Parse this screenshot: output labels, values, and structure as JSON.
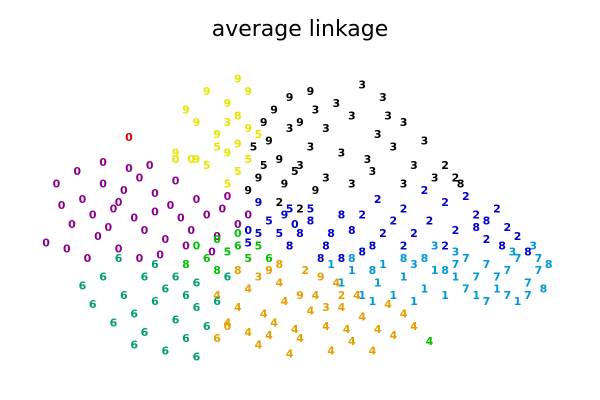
{
  "chart_data": {
    "type": "scatter",
    "title": "average linkage",
    "xlabel": "",
    "ylabel": "",
    "xlim": [
      -0.05,
      1.05
    ],
    "ylim": [
      -0.05,
      1.05
    ],
    "axes_visible": false,
    "grid": false,
    "marker": "digit-text",
    "series": [
      {
        "color": "#0072B2-like-purple",
        "label_color": "#8B008B",
        "digit": "0",
        "points": [
          [
            0.08,
            0.55
          ],
          [
            0.12,
            0.6
          ],
          [
            0.16,
            0.58
          ],
          [
            0.19,
            0.62
          ],
          [
            0.14,
            0.52
          ],
          [
            0.1,
            0.5
          ],
          [
            0.22,
            0.57
          ],
          [
            0.25,
            0.53
          ],
          [
            0.18,
            0.49
          ],
          [
            0.13,
            0.46
          ],
          [
            0.2,
            0.45
          ],
          [
            0.27,
            0.49
          ],
          [
            0.3,
            0.55
          ],
          [
            0.32,
            0.5
          ],
          [
            0.35,
            0.52
          ],
          [
            0.06,
            0.47
          ],
          [
            0.04,
            0.53
          ],
          [
            0.11,
            0.43
          ],
          [
            0.24,
            0.42
          ],
          [
            0.28,
            0.4
          ],
          [
            0.09,
            0.36
          ],
          [
            0.15,
            0.39
          ],
          [
            0.19,
            0.36
          ],
          [
            0.23,
            0.37
          ],
          [
            0.34,
            0.43
          ],
          [
            0.38,
            0.47
          ],
          [
            0.4,
            0.5
          ],
          [
            0.17,
            0.65
          ],
          [
            0.12,
            0.67
          ],
          [
            0.07,
            0.64
          ],
          [
            0.03,
            0.6
          ],
          [
            0.21,
            0.66
          ],
          [
            0.26,
            0.61
          ],
          [
            0.29,
            0.45
          ],
          [
            0.33,
            0.38
          ],
          [
            0.01,
            0.41
          ],
          [
            0.05,
            0.39
          ],
          [
            0.36,
            0.56
          ],
          [
            0.15,
            0.54
          ],
          [
            0.22,
            0.51
          ]
        ]
      },
      {
        "label_color": "#E69F00",
        "digit": "4",
        "points": [
          [
            0.4,
            0.12
          ],
          [
            0.45,
            0.15
          ],
          [
            0.5,
            0.1
          ],
          [
            0.55,
            0.14
          ],
          [
            0.6,
            0.09
          ],
          [
            0.65,
            0.13
          ],
          [
            0.52,
            0.19
          ],
          [
            0.47,
            0.22
          ],
          [
            0.43,
            0.18
          ],
          [
            0.58,
            0.2
          ],
          [
            0.62,
            0.17
          ],
          [
            0.68,
            0.11
          ],
          [
            0.38,
            0.2
          ],
          [
            0.42,
            0.08
          ],
          [
            0.48,
            0.05
          ],
          [
            0.56,
            0.06
          ],
          [
            0.64,
            0.06
          ],
          [
            0.7,
            0.18
          ],
          [
            0.36,
            0.15
          ],
          [
            0.53,
            0.24
          ],
          [
            0.46,
            0.28
          ],
          [
            0.4,
            0.26
          ],
          [
            0.61,
            0.24
          ],
          [
            0.67,
            0.21
          ],
          [
            0.72,
            0.14
          ],
          [
            0.34,
            0.24
          ],
          [
            0.57,
            0.28
          ],
          [
            0.49,
            0.13
          ],
          [
            0.44,
            0.11
          ],
          [
            0.59,
            0.13
          ]
        ]
      },
      {
        "label_color": "#009E73",
        "digit": "6",
        "points": [
          [
            0.18,
            0.18
          ],
          [
            0.22,
            0.22
          ],
          [
            0.26,
            0.16
          ],
          [
            0.3,
            0.2
          ],
          [
            0.24,
            0.26
          ],
          [
            0.2,
            0.12
          ],
          [
            0.28,
            0.1
          ],
          [
            0.32,
            0.14
          ],
          [
            0.16,
            0.24
          ],
          [
            0.14,
            0.15
          ],
          [
            0.34,
            0.22
          ],
          [
            0.26,
            0.3
          ],
          [
            0.22,
            0.34
          ],
          [
            0.3,
            0.28
          ],
          [
            0.12,
            0.3
          ],
          [
            0.18,
            0.08
          ],
          [
            0.24,
            0.06
          ],
          [
            0.3,
            0.04
          ],
          [
            0.1,
            0.21
          ],
          [
            0.08,
            0.27
          ],
          [
            0.36,
            0.3
          ],
          [
            0.2,
            0.3
          ],
          [
            0.28,
            0.24
          ],
          [
            0.15,
            0.36
          ]
        ]
      },
      {
        "label_color": "#000000",
        "digit": "3",
        "points": [
          [
            0.55,
            0.78
          ],
          [
            0.6,
            0.82
          ],
          [
            0.65,
            0.76
          ],
          [
            0.7,
            0.8
          ],
          [
            0.58,
            0.7
          ],
          [
            0.63,
            0.68
          ],
          [
            0.68,
            0.72
          ],
          [
            0.72,
            0.66
          ],
          [
            0.66,
            0.88
          ],
          [
            0.62,
            0.92
          ],
          [
            0.57,
            0.86
          ],
          [
            0.74,
            0.74
          ],
          [
            0.76,
            0.62
          ],
          [
            0.52,
            0.72
          ],
          [
            0.5,
            0.66
          ],
          [
            0.55,
            0.62
          ],
          [
            0.6,
            0.6
          ],
          [
            0.7,
            0.6
          ],
          [
            0.64,
            0.64
          ],
          [
            0.48,
            0.78
          ],
          [
            0.53,
            0.84
          ],
          [
            0.67,
            0.82
          ]
        ]
      },
      {
        "label_color": "#000000",
        "digit": "9",
        "points": [
          [
            0.45,
            0.84
          ],
          [
            0.48,
            0.88
          ],
          [
            0.52,
            0.9
          ],
          [
            0.5,
            0.8
          ],
          [
            0.44,
            0.74
          ],
          [
            0.46,
            0.68
          ],
          [
            0.42,
            0.62
          ],
          [
            0.4,
            0.58
          ],
          [
            0.47,
            0.6
          ],
          [
            0.53,
            0.58
          ],
          [
            0.43,
            0.8
          ]
        ]
      },
      {
        "label_color": "#000000",
        "digit": "2",
        "points": [
          [
            0.46,
            0.54
          ],
          [
            0.5,
            0.52
          ],
          [
            0.78,
            0.66
          ],
          [
            0.8,
            0.62
          ]
        ]
      },
      {
        "label_color": "#000000",
        "digit": "8",
        "points": [
          [
            0.81,
            0.6
          ]
        ]
      },
      {
        "label_color": "#000000",
        "digit": "5",
        "points": [
          [
            0.41,
            0.72
          ],
          [
            0.43,
            0.66
          ],
          [
            0.49,
            0.64
          ]
        ]
      },
      {
        "label_color": "#0000CC",
        "digit": "2",
        "points": [
          [
            0.65,
            0.55
          ],
          [
            0.7,
            0.52
          ],
          [
            0.75,
            0.48
          ],
          [
            0.8,
            0.45
          ],
          [
            0.72,
            0.44
          ],
          [
            0.78,
            0.54
          ],
          [
            0.84,
            0.5
          ],
          [
            0.88,
            0.52
          ],
          [
            0.86,
            0.42
          ],
          [
            0.68,
            0.48
          ],
          [
            0.62,
            0.5
          ],
          [
            0.74,
            0.58
          ],
          [
            0.82,
            0.56
          ],
          [
            0.9,
            0.46
          ],
          [
            0.92,
            0.43
          ],
          [
            0.66,
            0.44
          ],
          [
            0.7,
            0.4
          ],
          [
            0.78,
            0.4
          ]
        ]
      },
      {
        "label_color": "#0000CC",
        "digit": "8",
        "points": [
          [
            0.52,
            0.48
          ],
          [
            0.56,
            0.44
          ],
          [
            0.58,
            0.5
          ],
          [
            0.6,
            0.45
          ],
          [
            0.64,
            0.4
          ],
          [
            0.55,
            0.4
          ],
          [
            0.5,
            0.44
          ],
          [
            0.62,
            0.38
          ],
          [
            0.84,
            0.46
          ],
          [
            0.86,
            0.48
          ],
          [
            0.89,
            0.4
          ],
          [
            0.94,
            0.38
          ],
          [
            0.48,
            0.4
          ],
          [
            0.54,
            0.36
          ],
          [
            0.58,
            0.36
          ]
        ]
      },
      {
        "label_color": "#0000CC",
        "digit": "5",
        "points": [
          [
            0.44,
            0.48
          ],
          [
            0.46,
            0.44
          ],
          [
            0.42,
            0.44
          ],
          [
            0.48,
            0.52
          ],
          [
            0.52,
            0.52
          ],
          [
            0.4,
            0.41
          ]
        ]
      },
      {
        "label_color": "#0000CC",
        "digit": "9",
        "points": [
          [
            0.42,
            0.54
          ],
          [
            0.47,
            0.5
          ]
        ]
      },
      {
        "label_color": "#0000CC",
        "digit": "0",
        "points": [
          [
            0.4,
            0.45
          ],
          [
            0.49,
            0.47
          ]
        ]
      },
      {
        "label_color": "#0099D8",
        "digit": "1",
        "points": [
          [
            0.6,
            0.32
          ],
          [
            0.65,
            0.28
          ],
          [
            0.7,
            0.3
          ],
          [
            0.74,
            0.26
          ],
          [
            0.68,
            0.24
          ],
          [
            0.62,
            0.24
          ],
          [
            0.58,
            0.28
          ],
          [
            0.56,
            0.34
          ],
          [
            0.66,
            0.34
          ],
          [
            0.72,
            0.22
          ],
          [
            0.76,
            0.32
          ],
          [
            0.8,
            0.3
          ],
          [
            0.84,
            0.24
          ],
          [
            0.88,
            0.26
          ],
          [
            0.78,
            0.24
          ],
          [
            0.64,
            0.22
          ],
          [
            0.92,
            0.22
          ]
        ]
      },
      {
        "label_color": "#0099D8",
        "digit": "7",
        "points": [
          [
            0.82,
            0.36
          ],
          [
            0.86,
            0.34
          ],
          [
            0.9,
            0.32
          ],
          [
            0.94,
            0.28
          ],
          [
            0.96,
            0.32
          ],
          [
            0.88,
            0.3
          ],
          [
            0.84,
            0.3
          ],
          [
            0.8,
            0.34
          ],
          [
            0.92,
            0.36
          ],
          [
            0.96,
            0.36
          ],
          [
            0.9,
            0.24
          ],
          [
            0.86,
            0.22
          ],
          [
            0.82,
            0.26
          ],
          [
            0.94,
            0.24
          ]
        ]
      },
      {
        "label_color": "#0099D8",
        "digit": "8",
        "points": [
          [
            0.7,
            0.36
          ],
          [
            0.74,
            0.36
          ],
          [
            0.78,
            0.32
          ],
          [
            0.6,
            0.36
          ],
          [
            0.64,
            0.32
          ],
          [
            0.97,
            0.26
          ],
          [
            0.98,
            0.34
          ]
        ]
      },
      {
        "label_color": "#0099D8",
        "digit": "3",
        "points": [
          [
            0.76,
            0.4
          ],
          [
            0.8,
            0.38
          ],
          [
            0.72,
            0.34
          ],
          [
            0.91,
            0.38
          ],
          [
            0.95,
            0.4
          ]
        ]
      },
      {
        "label_color": "#E69F00",
        "digit": "9",
        "points": [
          [
            0.54,
            0.3
          ],
          [
            0.5,
            0.24
          ],
          [
            0.44,
            0.32
          ]
        ]
      },
      {
        "label_color": "#E69F00",
        "digit": "2",
        "points": [
          [
            0.51,
            0.32
          ],
          [
            0.58,
            0.24
          ]
        ]
      },
      {
        "label_color": "#E69F00",
        "digit": "8",
        "points": [
          [
            0.38,
            0.32
          ],
          [
            0.46,
            0.34
          ]
        ]
      },
      {
        "label_color": "#E69F00",
        "digit": "3",
        "points": [
          [
            0.42,
            0.3
          ],
          [
            0.55,
            0.2
          ]
        ]
      },
      {
        "label_color": "#E69F00",
        "digit": "0",
        "points": [
          [
            0.36,
            0.14
          ]
        ]
      },
      {
        "label_color": "#E69F00",
        "digit": "6",
        "points": [
          [
            0.34,
            0.1
          ]
        ]
      },
      {
        "label_color": "#00C000",
        "digit": "0",
        "points": [
          [
            0.3,
            0.4
          ],
          [
            0.34,
            0.42
          ],
          [
            0.38,
            0.44
          ]
        ]
      },
      {
        "label_color": "#00C000",
        "digit": "5",
        "points": [
          [
            0.36,
            0.38
          ],
          [
            0.4,
            0.36
          ],
          [
            0.42,
            0.4
          ]
        ]
      },
      {
        "label_color": "#00C000",
        "digit": "6",
        "points": [
          [
            0.32,
            0.36
          ],
          [
            0.38,
            0.4
          ],
          [
            0.44,
            0.36
          ]
        ]
      },
      {
        "label_color": "#00C000",
        "digit": "8",
        "points": [
          [
            0.34,
            0.32
          ],
          [
            0.28,
            0.34
          ]
        ]
      },
      {
        "label_color": "#00C000",
        "digit": "4",
        "points": [
          [
            0.75,
            0.09
          ]
        ]
      },
      {
        "label_color": "#E6E600",
        "digit": "9",
        "points": [
          [
            0.28,
            0.84
          ],
          [
            0.32,
            0.9
          ],
          [
            0.38,
            0.94
          ],
          [
            0.4,
            0.9
          ],
          [
            0.36,
            0.86
          ],
          [
            0.3,
            0.8
          ],
          [
            0.34,
            0.76
          ],
          [
            0.4,
            0.78
          ],
          [
            0.26,
            0.7
          ],
          [
            0.36,
            0.7
          ],
          [
            0.3,
            0.68
          ],
          [
            0.38,
            0.73
          ]
        ]
      },
      {
        "label_color": "#E6E600",
        "digit": "5",
        "points": [
          [
            0.42,
            0.76
          ],
          [
            0.4,
            0.68
          ],
          [
            0.34,
            0.72
          ],
          [
            0.32,
            0.66
          ],
          [
            0.38,
            0.64
          ],
          [
            0.36,
            0.6
          ]
        ]
      },
      {
        "label_color": "#E6E600",
        "digit": "8",
        "points": [
          [
            0.38,
            0.82
          ]
        ]
      },
      {
        "label_color": "#E6E600",
        "digit": "3",
        "points": [
          [
            0.36,
            0.8
          ]
        ]
      },
      {
        "label_color": "#E6E600",
        "digit": "0",
        "points": [
          [
            0.26,
            0.68
          ],
          [
            0.29,
            0.68
          ]
        ]
      },
      {
        "label_color": "#DD0000",
        "digit": "0",
        "points": [
          [
            0.17,
            0.75
          ]
        ]
      }
    ]
  }
}
